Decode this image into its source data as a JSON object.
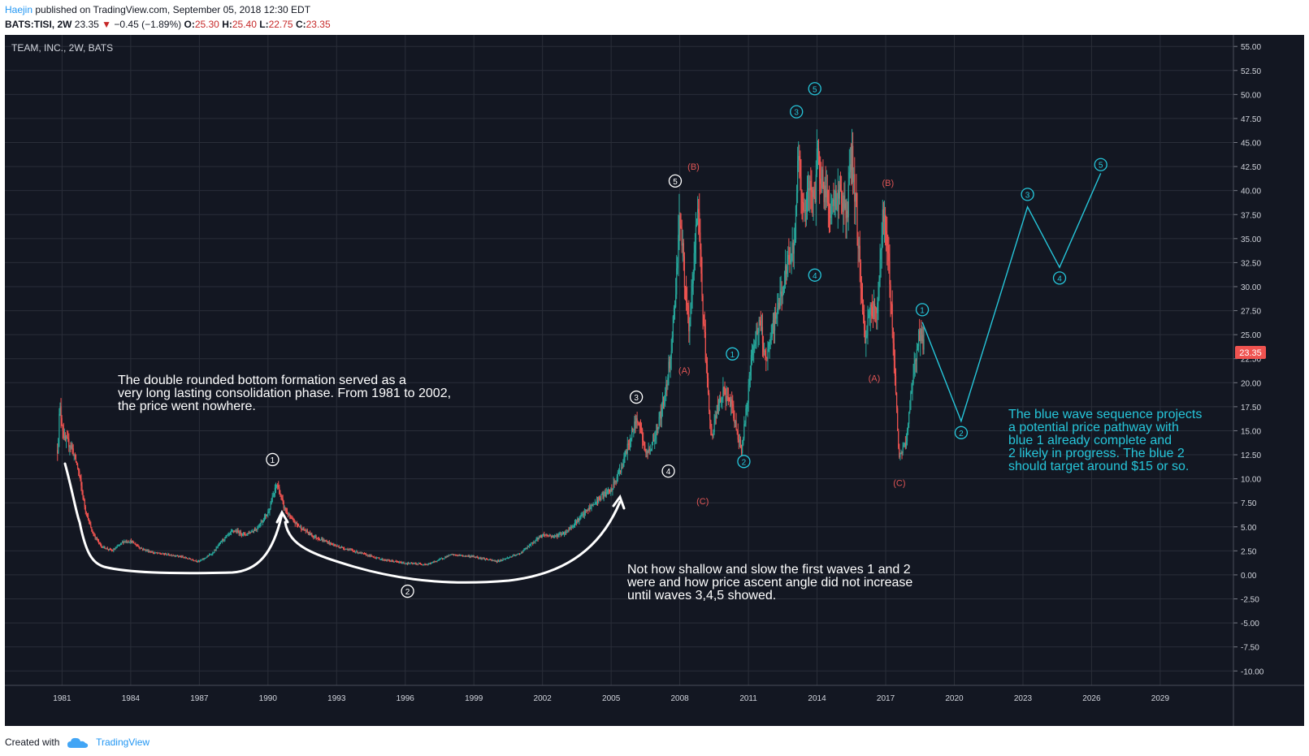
{
  "header": {
    "author": "Haejin",
    "published": " published on TradingView.com, September 05, 2018 12:30 EDT",
    "symbol": "BATS:TISI, 2W",
    "last": "23.35",
    "change": "−0.45 (−1.89%)",
    "open_label": "O:",
    "open": "25.30",
    "high_label": "H:",
    "high": "25.40",
    "low_label": "L:",
    "low": "22.75",
    "close_label": "C:",
    "close": "23.35"
  },
  "footer": {
    "created_with": "Created with",
    "brand": "TradingView"
  },
  "colors": {
    "bg": "#131722",
    "grid": "#2a2e39",
    "up": "#26a69a",
    "down": "#ef5350",
    "accent": "#26c6da",
    "red_label": "#e05555",
    "white": "#ffffff"
  },
  "chart_data": {
    "type": "candlestick",
    "title": "TEAM, INC., 2W, BATS",
    "price_tag": "23.35",
    "ylim": [
      -11.5,
      56.2
    ],
    "xlim": [
      1978.5,
      2032.2
    ],
    "y_ticks": [
      "55.00",
      "52.50",
      "50.00",
      "47.50",
      "45.00",
      "42.50",
      "40.00",
      "37.50",
      "35.00",
      "32.50",
      "30.00",
      "27.50",
      "25.00",
      "22.50",
      "20.00",
      "17.50",
      "15.00",
      "12.50",
      "10.00",
      "7.50",
      "5.00",
      "2.50",
      "0.00",
      "-2.50",
      "-5.00",
      "-7.50",
      "-10.00"
    ],
    "x_ticks": [
      {
        "label": "1981",
        "year": 1981
      },
      {
        "label": "1984",
        "year": 1984
      },
      {
        "label": "1987",
        "year": 1987
      },
      {
        "label": "1990",
        "year": 1990
      },
      {
        "label": "1993",
        "year": 1993
      },
      {
        "label": "1996",
        "year": 1996
      },
      {
        "label": "1999",
        "year": 1999
      },
      {
        "label": "2002",
        "year": 2002
      },
      {
        "label": "2005",
        "year": 2005
      },
      {
        "label": "2008",
        "year": 2008
      },
      {
        "label": "2011",
        "year": 2011
      },
      {
        "label": "2014",
        "year": 2014
      },
      {
        "label": "2017",
        "year": 2017
      },
      {
        "label": "2020",
        "year": 2020
      },
      {
        "label": "2023",
        "year": 2023
      },
      {
        "label": "2026",
        "year": 2026
      },
      {
        "label": "2029",
        "year": 2029
      }
    ],
    "price_path": [
      [
        1980.8,
        13
      ],
      [
        1980.9,
        17.5
      ],
      [
        1981.1,
        14
      ],
      [
        1981.4,
        13.5
      ],
      [
        1981.7,
        11
      ],
      [
        1982.0,
        7
      ],
      [
        1982.3,
        4.5
      ],
      [
        1982.7,
        3
      ],
      [
        1983.2,
        2.5
      ],
      [
        1983.7,
        3.5
      ],
      [
        1984.0,
        3.5
      ],
      [
        1984.5,
        2.7
      ],
      [
        1985.0,
        2.3
      ],
      [
        1986.0,
        2
      ],
      [
        1987.0,
        1.4
      ],
      [
        1987.6,
        2.3
      ],
      [
        1988.0,
        3.6
      ],
      [
        1988.5,
        4.6
      ],
      [
        1989.0,
        4.2
      ],
      [
        1989.5,
        4.8
      ],
      [
        1990.0,
        6.5
      ],
      [
        1990.4,
        9.5
      ],
      [
        1990.7,
        7
      ],
      [
        1991.0,
        5.8
      ],
      [
        1991.5,
        4.8
      ],
      [
        1992.0,
        4
      ],
      [
        1993.0,
        3
      ],
      [
        1994.0,
        2.3
      ],
      [
        1995.0,
        1.6
      ],
      [
        1996.0,
        1.2
      ],
      [
        1997.0,
        1.1
      ],
      [
        1998.0,
        2.1
      ],
      [
        1999.0,
        1.9
      ],
      [
        2000.0,
        1.4
      ],
      [
        2001.0,
        2.2
      ],
      [
        2002.0,
        4.2
      ],
      [
        2002.5,
        4
      ],
      [
        2003.0,
        4.4
      ],
      [
        2004.0,
        6.8
      ],
      [
        2004.6,
        8.2
      ],
      [
        2005.0,
        8.8
      ],
      [
        2005.5,
        11.5
      ],
      [
        2006.0,
        15.5
      ],
      [
        2006.2,
        16.5
      ],
      [
        2006.5,
        12.5
      ],
      [
        2006.8,
        13.5
      ],
      [
        2007.3,
        18
      ],
      [
        2007.6,
        23
      ],
      [
        2007.8,
        29
      ],
      [
        2008.0,
        38
      ],
      [
        2008.2,
        31
      ],
      [
        2008.4,
        25
      ],
      [
        2008.6,
        32
      ],
      [
        2008.8,
        39
      ],
      [
        2009.0,
        28
      ],
      [
        2009.2,
        20
      ],
      [
        2009.4,
        14
      ],
      [
        2009.6,
        17
      ],
      [
        2009.9,
        19
      ],
      [
        2010.2,
        18
      ],
      [
        2010.5,
        15
      ],
      [
        2010.7,
        13
      ],
      [
        2010.9,
        17
      ],
      [
        2011.2,
        24
      ],
      [
        2011.5,
        26
      ],
      [
        2011.8,
        22
      ],
      [
        2012.0,
        25
      ],
      [
        2012.4,
        29
      ],
      [
        2012.8,
        33
      ],
      [
        2013.0,
        34
      ],
      [
        2013.2,
        45
      ],
      [
        2013.4,
        37
      ],
      [
        2013.6,
        40
      ],
      [
        2013.9,
        39
      ],
      [
        2014.0,
        44
      ],
      [
        2014.3,
        40
      ],
      [
        2014.6,
        38
      ],
      [
        2015.0,
        40
      ],
      [
        2015.3,
        37
      ],
      [
        2015.5,
        44
      ],
      [
        2015.7,
        38
      ],
      [
        2015.9,
        31
      ],
      [
        2016.1,
        24
      ],
      [
        2016.3,
        28
      ],
      [
        2016.6,
        27
      ],
      [
        2016.9,
        38
      ],
      [
        2017.1,
        33
      ],
      [
        2017.3,
        26
      ],
      [
        2017.5,
        16
      ],
      [
        2017.6,
        12
      ],
      [
        2017.9,
        14
      ],
      [
        2018.2,
        21
      ],
      [
        2018.5,
        25.5
      ],
      [
        2018.7,
        23.35
      ]
    ],
    "waves": {
      "white": [
        {
          "label": "1",
          "year": 1990.2,
          "value": 12.0
        },
        {
          "label": "2",
          "year": 1996.1,
          "value": -1.7
        },
        {
          "label": "3",
          "year": 2006.1,
          "value": 18.5
        },
        {
          "label": "4",
          "year": 2007.5,
          "value": 10.8
        },
        {
          "label": "5",
          "year": 2007.8,
          "value": 41.0
        }
      ],
      "red": [
        {
          "label": "(B)",
          "year": 2008.6,
          "value": 42.5
        },
        {
          "label": "(A)",
          "year": 2008.2,
          "value": 21.3
        },
        {
          "label": "(C)",
          "year": 2009.0,
          "value": 7.7
        },
        {
          "label": "(B)",
          "year": 2017.1,
          "value": 40.8
        },
        {
          "label": "(A)",
          "year": 2016.5,
          "value": 20.5
        },
        {
          "label": "(C)",
          "year": 2017.6,
          "value": 9.6
        }
      ],
      "cyan_past": [
        {
          "label": "1",
          "year": 2010.3,
          "value": 23.0
        },
        {
          "label": "2",
          "year": 2010.8,
          "value": 11.8
        },
        {
          "label": "3",
          "year": 2013.1,
          "value": 48.2
        },
        {
          "label": "4",
          "year": 2013.9,
          "value": 31.2
        },
        {
          "label": "5",
          "year": 2013.9,
          "value": 50.6
        }
      ],
      "cyan_projection": [
        {
          "label": "1",
          "year": 2018.6,
          "value": 27.6
        },
        {
          "label": "2",
          "year": 2020.3,
          "value": 14.8
        },
        {
          "label": "3",
          "year": 2023.2,
          "value": 39.6
        },
        {
          "label": "4",
          "year": 2024.6,
          "value": 30.9
        },
        {
          "label": "5",
          "year": 2026.4,
          "value": 42.7
        }
      ],
      "projection_path": [
        [
          2018.6,
          26.3
        ],
        [
          2020.3,
          16.0
        ],
        [
          2023.2,
          38.3
        ],
        [
          2024.6,
          32.0
        ],
        [
          2026.4,
          41.8
        ]
      ]
    },
    "annotations": {
      "left_note": [
        "The double rounded bottom formation served as a",
        "very long lasting consolidation phase. From 1981 to 2002,",
        "the price went nowhere."
      ],
      "middle_note": [
        "Not how shallow and slow the first waves 1 and 2",
        "were and how price ascent angle did not increase",
        "until waves 3,4,5 showed."
      ],
      "right_note": [
        "The blue wave sequence projects",
        "a potential price pathway with",
        "blue 1 already complete and",
        "2 likely in progress. The blue 2",
        "should target around $15 or so."
      ]
    }
  }
}
